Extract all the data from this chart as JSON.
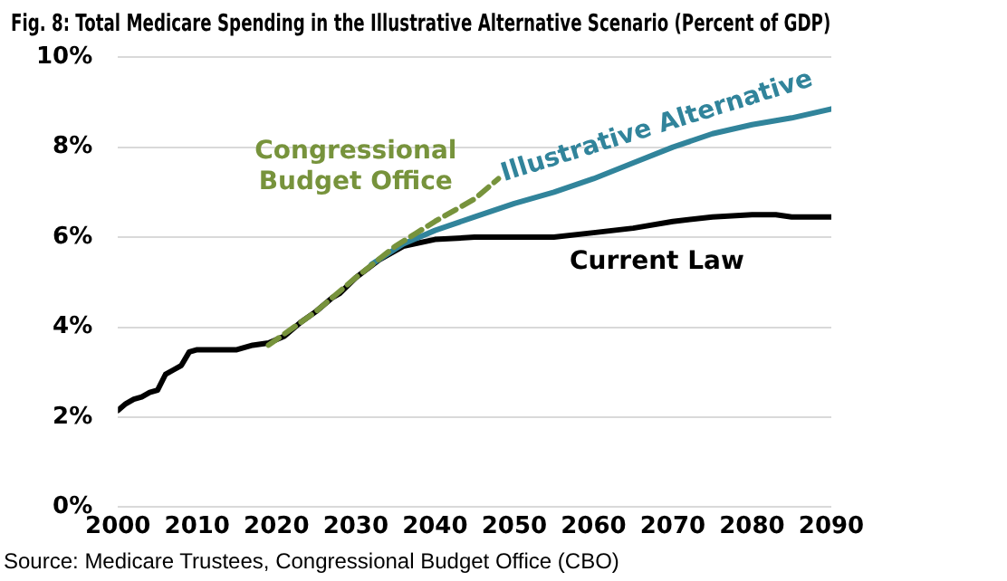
{
  "chart_data": {
    "type": "line",
    "title": "Fig. 8: Total Medicare Spending in the Illustrative Alternative Scenario (Percent of GDP)",
    "xlim": [
      2000,
      2090
    ],
    "xticks": [
      2000,
      2010,
      2020,
      2030,
      2040,
      2050,
      2060,
      2070,
      2080,
      2090
    ],
    "ylim": [
      0,
      10
    ],
    "yticks": [
      {
        "value": 0,
        "label": "0%"
      },
      {
        "value": 2,
        "label": "2%"
      },
      {
        "value": 4,
        "label": "4%"
      },
      {
        "value": 6,
        "label": "6%"
      },
      {
        "value": 8,
        "label": "8%"
      },
      {
        "value": 10,
        "label": "10%"
      }
    ],
    "grid": "y",
    "legend": false,
    "marker": "none",
    "series": [
      {
        "name": "Congressional Budget Office",
        "color": "#77933c",
        "line_style": "dashed",
        "x": [
          2019,
          2025,
          2030,
          2035,
          2040,
          2045,
          2048
        ],
        "values": [
          3.6,
          4.35,
          5.1,
          5.8,
          6.35,
          6.85,
          7.3
        ]
      },
      {
        "name": "Illustrative Alternative",
        "color": "#31849b",
        "line_style": "solid",
        "x": [
          2032,
          2036,
          2040,
          2045,
          2050,
          2055,
          2060,
          2065,
          2070,
          2075,
          2080,
          2085,
          2090
        ],
        "values": [
          5.4,
          5.85,
          6.15,
          6.45,
          6.75,
          7.0,
          7.3,
          7.65,
          8.0,
          8.3,
          8.5,
          8.65,
          8.85
        ]
      },
      {
        "name": "Current Law",
        "color": "#000000",
        "line_style": "solid",
        "x": [
          2000,
          2001,
          2002,
          2003,
          2004,
          2005,
          2006,
          2007,
          2008,
          2009,
          2010,
          2012,
          2015,
          2017,
          2019,
          2021,
          2023,
          2025,
          2027,
          2028,
          2030,
          2033,
          2036,
          2040,
          2045,
          2050,
          2055,
          2060,
          2065,
          2070,
          2075,
          2080,
          2083,
          2085,
          2090
        ],
        "values": [
          2.15,
          2.3,
          2.4,
          2.45,
          2.55,
          2.6,
          2.95,
          3.05,
          3.15,
          3.45,
          3.5,
          3.5,
          3.5,
          3.6,
          3.65,
          3.8,
          4.1,
          4.35,
          4.65,
          4.75,
          5.1,
          5.5,
          5.8,
          5.95,
          6.0,
          6.0,
          6.0,
          6.1,
          6.2,
          6.35,
          6.45,
          6.5,
          6.5,
          6.45,
          6.45
        ]
      }
    ],
    "annotations": [
      "Source: Medicare Trustees, Congressional Budget Office (CBO)"
    ]
  }
}
